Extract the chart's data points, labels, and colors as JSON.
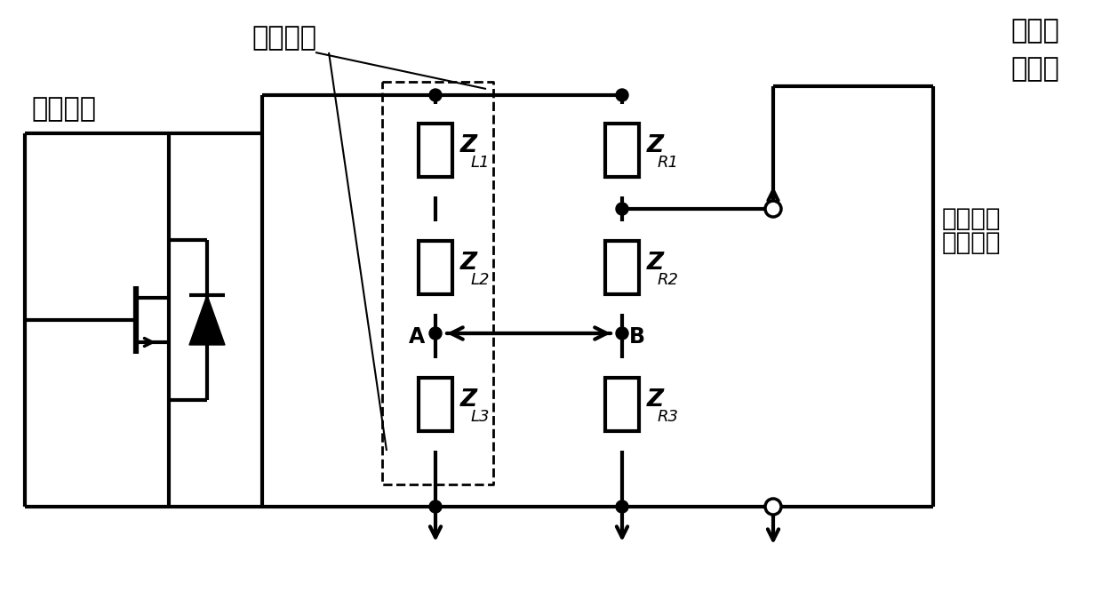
{
  "bg_color": "#ffffff",
  "line_color": "#000000",
  "lw": 3.0,
  "lw_thin": 1.5,
  "lw_dash": 2.0,
  "labels": {
    "noise_signal": "噪声信号",
    "inverter_unit": "逆变单元",
    "high_freq_line1": "高频通",
    "high_freq_line2": "讯信号",
    "inverter_output_line1": "逆变单元",
    "inverter_output_line2": "输出端口",
    "A": "A",
    "B": "B"
  },
  "impedance_labels": [
    {
      "text": "Z",
      "sub": "L1"
    },
    {
      "text": "Z",
      "sub": "L2"
    },
    {
      "text": "Z",
      "sub": "L3"
    },
    {
      "text": "Z",
      "sub": "R1"
    },
    {
      "text": "Z",
      "sub": "R2"
    },
    {
      "text": "Z",
      "sub": "R3"
    }
  ]
}
